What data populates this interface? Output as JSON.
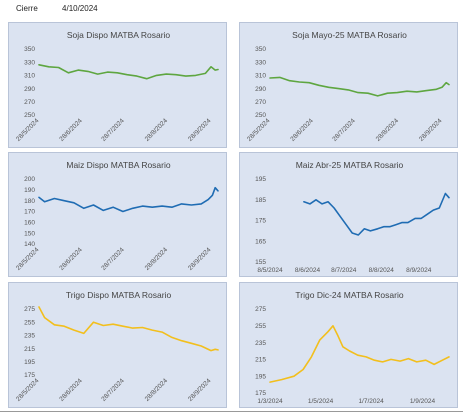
{
  "header": {
    "label": "Cierre",
    "date": "4/10/2024"
  },
  "chart_data": [
    {
      "type": "line",
      "title": "Soja Dispo MATBA Rosario",
      "color": "#5ea640",
      "ylim": [
        250,
        350
      ],
      "yticks": [
        250,
        270,
        290,
        310,
        330,
        350
      ],
      "xlim": [
        "2024-05-28",
        "2024-10-03"
      ],
      "xticks": [
        {
          "label": "28/5/2024",
          "date": "2024-05-28"
        },
        {
          "label": "28/6/2024",
          "date": "2024-06-28"
        },
        {
          "label": "28/7/2024",
          "date": "2024-07-28"
        },
        {
          "label": "28/8/2024",
          "date": "2024-08-28"
        },
        {
          "label": "28/9/2024",
          "date": "2024-09-28"
        }
      ],
      "xtick_rotated": true,
      "series": [
        {
          "x": [
            "2024-05-28",
            "2024-06-04",
            "2024-06-11",
            "2024-06-18",
            "2024-06-25",
            "2024-07-02",
            "2024-07-09",
            "2024-07-16",
            "2024-07-23",
            "2024-07-30",
            "2024-08-06",
            "2024-08-13",
            "2024-08-20",
            "2024-08-27",
            "2024-09-03",
            "2024-09-10",
            "2024-09-17",
            "2024-09-24",
            "2024-09-28",
            "2024-10-01",
            "2024-10-03"
          ],
          "y": [
            326,
            323,
            322,
            314,
            318,
            316,
            312,
            315,
            314,
            311,
            309,
            305,
            310,
            312,
            311,
            309,
            310,
            313,
            323,
            318,
            319
          ]
        }
      ]
    },
    {
      "type": "line",
      "title": "Soja Mayo-25 MATBA Rosario",
      "color": "#5ea640",
      "ylim": [
        250,
        350
      ],
      "yticks": [
        250,
        270,
        290,
        310,
        330,
        350
      ],
      "xlim": [
        "2024-05-28",
        "2024-10-03"
      ],
      "xticks": [
        {
          "label": "28/5/2024",
          "date": "2024-05-28"
        },
        {
          "label": "28/6/2024",
          "date": "2024-06-28"
        },
        {
          "label": "28/7/2024",
          "date": "2024-07-28"
        },
        {
          "label": "28/8/2024",
          "date": "2024-08-28"
        },
        {
          "label": "28/9/2024",
          "date": "2024-09-28"
        }
      ],
      "xtick_rotated": true,
      "series": [
        {
          "x": [
            "2024-05-28",
            "2024-06-04",
            "2024-06-11",
            "2024-06-18",
            "2024-06-25",
            "2024-07-02",
            "2024-07-09",
            "2024-07-16",
            "2024-07-23",
            "2024-07-30",
            "2024-08-06",
            "2024-08-13",
            "2024-08-20",
            "2024-08-27",
            "2024-09-03",
            "2024-09-10",
            "2024-09-17",
            "2024-09-24",
            "2024-09-28",
            "2024-10-01",
            "2024-10-03"
          ],
          "y": [
            306,
            307,
            302,
            300,
            299,
            295,
            292,
            290,
            288,
            284,
            283,
            279,
            283,
            284,
            286,
            285,
            287,
            289,
            292,
            299,
            296
          ]
        }
      ]
    },
    {
      "type": "line",
      "title": "Maiz Dispo MATBA Rosario",
      "color": "#1f6cb3",
      "ylim": [
        140,
        200
      ],
      "yticks": [
        140,
        150,
        160,
        170,
        180,
        190,
        200
      ],
      "xlim": [
        "2024-05-28",
        "2024-10-03"
      ],
      "xticks": [
        {
          "label": "28/5/2024",
          "date": "2024-05-28"
        },
        {
          "label": "28/6/2024",
          "date": "2024-06-28"
        },
        {
          "label": "28/7/2024",
          "date": "2024-07-28"
        },
        {
          "label": "28/8/2024",
          "date": "2024-08-28"
        },
        {
          "label": "28/9/2024",
          "date": "2024-09-28"
        }
      ],
      "xtick_rotated": true,
      "series": [
        {
          "x": [
            "2024-05-28",
            "2024-06-01",
            "2024-06-08",
            "2024-06-15",
            "2024-06-22",
            "2024-06-29",
            "2024-07-06",
            "2024-07-13",
            "2024-07-20",
            "2024-07-27",
            "2024-08-03",
            "2024-08-10",
            "2024-08-17",
            "2024-08-24",
            "2024-08-31",
            "2024-09-07",
            "2024-09-14",
            "2024-09-21",
            "2024-09-26",
            "2024-09-29",
            "2024-10-01",
            "2024-10-03"
          ],
          "y": [
            183,
            179,
            182,
            180,
            178,
            173,
            176,
            171,
            174,
            170,
            173,
            175,
            174,
            175,
            174,
            177,
            176,
            177,
            181,
            185,
            192,
            189
          ]
        }
      ]
    },
    {
      "type": "line",
      "title": "Maiz Abr-25 MATBA Rosario",
      "color": "#1f6cb3",
      "ylim": [
        155,
        195
      ],
      "yticks": [
        155,
        165,
        175,
        185,
        195
      ],
      "xlim": [
        "2024-05-08",
        "2024-10-03"
      ],
      "xticks": [
        {
          "label": "8/5/2024",
          "date": "2024-05-08"
        },
        {
          "label": "8/6/2024",
          "date": "2024-06-08"
        },
        {
          "label": "8/7/2024",
          "date": "2024-07-08"
        },
        {
          "label": "8/8/2024",
          "date": "2024-08-08"
        },
        {
          "label": "8/9/2024",
          "date": "2024-09-08"
        }
      ],
      "xtick_rotated": false,
      "series": [
        {
          "x": [
            "2024-06-05",
            "2024-06-10",
            "2024-06-15",
            "2024-06-20",
            "2024-06-25",
            "2024-06-30",
            "2024-07-05",
            "2024-07-10",
            "2024-07-15",
            "2024-07-20",
            "2024-07-25",
            "2024-07-30",
            "2024-08-05",
            "2024-08-10",
            "2024-08-15",
            "2024-08-20",
            "2024-08-25",
            "2024-08-30",
            "2024-09-05",
            "2024-09-10",
            "2024-09-15",
            "2024-09-20",
            "2024-09-25",
            "2024-09-30",
            "2024-10-03"
          ],
          "y": [
            184,
            183,
            185,
            183,
            184,
            181,
            177,
            173,
            169,
            168,
            171,
            170,
            171,
            172,
            172,
            173,
            174,
            174,
            176,
            176,
            178,
            180,
            181,
            188,
            186
          ]
        }
      ]
    },
    {
      "type": "line",
      "title": "Trigo Dispo MATBA Rosario",
      "color": "#f2bf1d",
      "ylim": [
        175,
        275
      ],
      "yticks": [
        175,
        195,
        215,
        235,
        255,
        275
      ],
      "xlim": [
        "2024-05-28",
        "2024-10-03"
      ],
      "xticks": [
        {
          "label": "28/5/2024",
          "date": "2024-05-28"
        },
        {
          "label": "28/6/2024",
          "date": "2024-06-28"
        },
        {
          "label": "28/7/2024",
          "date": "2024-07-28"
        },
        {
          "label": "28/8/2024",
          "date": "2024-08-28"
        },
        {
          "label": "28/9/2024",
          "date": "2024-09-28"
        }
      ],
      "xtick_rotated": true,
      "series": [
        {
          "x": [
            "2024-05-28",
            "2024-06-01",
            "2024-06-08",
            "2024-06-15",
            "2024-06-22",
            "2024-06-29",
            "2024-07-06",
            "2024-07-13",
            "2024-07-20",
            "2024-07-27",
            "2024-08-03",
            "2024-08-10",
            "2024-08-17",
            "2024-08-24",
            "2024-08-31",
            "2024-09-07",
            "2024-09-14",
            "2024-09-21",
            "2024-09-28",
            "2024-10-01",
            "2024-10-03"
          ],
          "y": [
            278,
            262,
            251,
            249,
            243,
            238,
            255,
            250,
            252,
            249,
            246,
            247,
            243,
            240,
            232,
            227,
            223,
            219,
            212,
            214,
            213
          ]
        }
      ]
    },
    {
      "type": "line",
      "title": "Trigo Dic-24 MATBA Rosario",
      "color": "#f2bf1d",
      "ylim": [
        175,
        275
      ],
      "yticks": [
        175,
        195,
        215,
        235,
        255,
        275
      ],
      "xlim": [
        "2024-03-01",
        "2024-10-03"
      ],
      "xticks": [
        {
          "label": "1/3/2024",
          "date": "2024-03-01"
        },
        {
          "label": "1/5/2024",
          "date": "2024-05-01"
        },
        {
          "label": "1/7/2024",
          "date": "2024-07-01"
        },
        {
          "label": "1/9/2024",
          "date": "2024-09-01"
        }
      ],
      "xtick_rotated": false,
      "series": [
        {
          "x": [
            "2024-03-01",
            "2024-03-15",
            "2024-03-30",
            "2024-04-10",
            "2024-04-20",
            "2024-04-30",
            "2024-05-10",
            "2024-05-16",
            "2024-05-22",
            "2024-05-28",
            "2024-06-05",
            "2024-06-15",
            "2024-06-25",
            "2024-07-05",
            "2024-07-15",
            "2024-07-25",
            "2024-08-05",
            "2024-08-15",
            "2024-08-25",
            "2024-09-05",
            "2024-09-15",
            "2024-09-25",
            "2024-10-03"
          ],
          "y": [
            188,
            191,
            195,
            203,
            218,
            238,
            248,
            255,
            243,
            230,
            225,
            220,
            218,
            214,
            212,
            215,
            213,
            216,
            212,
            214,
            209,
            214,
            218
          ]
        }
      ]
    }
  ]
}
